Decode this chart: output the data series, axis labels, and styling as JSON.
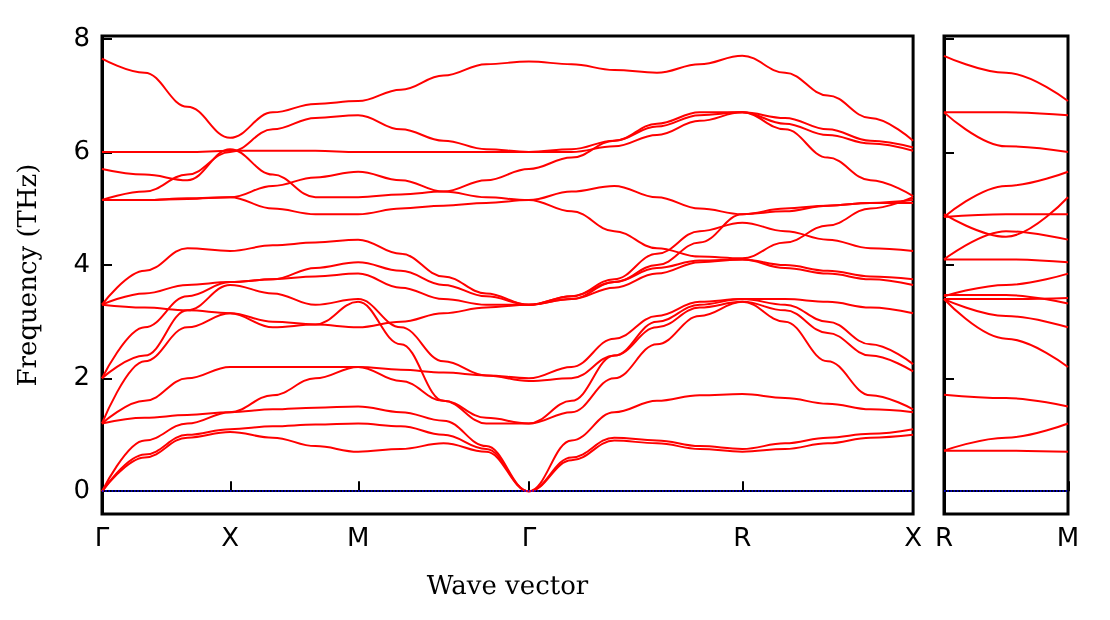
{
  "chart_data": [
    {
      "type": "line",
      "xlabel": "Wave vector",
      "ylabel": "Frequency (THz)",
      "marker": "none",
      "line_style": "solid",
      "ylim": [
        -0.4,
        8.05
      ],
      "categories": [
        "Γ",
        null,
        null,
        "X",
        null,
        null,
        "M",
        null,
        null,
        null,
        "Γ",
        null,
        null,
        null,
        null,
        "R",
        null,
        null,
        null,
        "X"
      ],
      "yticks": [
        0,
        2,
        4,
        6,
        8
      ],
      "ref_lines": [
        {
          "axis": "y",
          "value": 0,
          "color": "#0000ff",
          "line_style": "dotted"
        }
      ],
      "series": [
        {
          "color": "#ff0000",
          "values": [
            0,
            0.6,
            0.95,
            1.05,
            0.95,
            0.8,
            0.7,
            0.75,
            0.85,
            0.7,
            0,
            0.55,
            0.9,
            0.85,
            0.75,
            0.7,
            0.75,
            0.85,
            0.95,
            1.0
          ]
        },
        {
          "color": "#ff0000",
          "values": [
            0,
            0.65,
            1.0,
            1.1,
            1.15,
            1.18,
            1.2,
            1.15,
            1.0,
            0.75,
            0,
            0.6,
            0.95,
            0.9,
            0.8,
            0.75,
            0.85,
            0.95,
            1.02,
            1.1
          ]
        },
        {
          "color": "#ff0000",
          "values": [
            0,
            0.9,
            1.2,
            1.4,
            1.45,
            1.48,
            1.5,
            1.4,
            1.25,
            0.8,
            0,
            0.9,
            1.4,
            1.6,
            1.7,
            1.72,
            1.65,
            1.55,
            1.45,
            1.4
          ]
        },
        {
          "color": "#ff0000",
          "values": [
            1.2,
            1.3,
            1.35,
            1.4,
            1.7,
            2.0,
            2.2,
            1.95,
            1.6,
            1.3,
            1.2,
            1.4,
            2.0,
            2.6,
            3.1,
            3.35,
            3.0,
            2.3,
            1.7,
            1.45
          ]
        },
        {
          "color": "#ff0000",
          "values": [
            1.2,
            1.6,
            2.0,
            2.2,
            2.2,
            2.2,
            2.2,
            2.15,
            2.1,
            2.05,
            1.95,
            2.0,
            2.4,
            2.9,
            3.25,
            3.35,
            3.2,
            2.8,
            2.4,
            2.12
          ]
        },
        {
          "color": "#ff0000",
          "values": [
            1.2,
            2.3,
            2.9,
            3.15,
            2.9,
            2.95,
            3.35,
            2.6,
            1.6,
            1.2,
            1.2,
            1.6,
            2.4,
            3.0,
            3.3,
            3.4,
            3.3,
            3.0,
            2.6,
            2.25
          ]
        },
        {
          "color": "#ff0000",
          "values": [
            2.0,
            2.4,
            3.2,
            3.65,
            3.5,
            3.3,
            3.4,
            2.9,
            2.3,
            2.05,
            2.0,
            2.2,
            2.7,
            3.1,
            3.35,
            3.4,
            3.4,
            3.35,
            3.25,
            3.15
          ]
        },
        {
          "color": "#ff0000",
          "values": [
            2.0,
            2.9,
            3.45,
            3.7,
            3.75,
            3.8,
            3.85,
            3.6,
            3.4,
            3.3,
            3.3,
            3.4,
            3.6,
            3.85,
            4.05,
            4.1,
            3.95,
            3.85,
            3.75,
            3.65
          ]
        },
        {
          "color": "#ff0000",
          "values": [
            3.3,
            3.25,
            3.2,
            3.15,
            3.0,
            2.95,
            2.9,
            3.0,
            3.15,
            3.25,
            3.3,
            3.45,
            3.7,
            3.95,
            4.08,
            4.1,
            4.0,
            3.9,
            3.8,
            3.75
          ]
        },
        {
          "color": "#ff0000",
          "values": [
            3.3,
            3.9,
            4.3,
            4.25,
            4.35,
            4.4,
            4.45,
            4.2,
            3.8,
            3.5,
            3.3,
            3.45,
            3.75,
            4.2,
            4.6,
            4.75,
            4.6,
            4.45,
            4.3,
            4.25
          ]
        },
        {
          "color": "#ff0000",
          "values": [
            3.3,
            3.5,
            3.65,
            3.7,
            3.75,
            3.95,
            4.05,
            3.9,
            3.65,
            3.45,
            3.3,
            3.4,
            3.7,
            4.0,
            4.4,
            4.9,
            5.0,
            5.05,
            5.1,
            5.15
          ]
        },
        {
          "color": "#ff0000",
          "values": [
            5.15,
            5.15,
            5.17,
            5.2,
            5.0,
            4.9,
            4.9,
            5.0,
            5.05,
            5.1,
            5.15,
            4.95,
            4.6,
            4.3,
            4.15,
            4.12,
            4.4,
            4.7,
            5.0,
            5.2
          ]
        },
        {
          "color": "#ff0000",
          "values": [
            5.15,
            5.15,
            5.18,
            5.2,
            5.4,
            5.55,
            5.65,
            5.5,
            5.3,
            5.2,
            5.15,
            5.3,
            5.4,
            5.2,
            5.0,
            4.9,
            4.95,
            5.05,
            5.1,
            5.1
          ]
        },
        {
          "color": "#ff0000",
          "values": [
            5.7,
            5.6,
            5.5,
            6.05,
            5.6,
            5.2,
            5.2,
            5.25,
            5.3,
            5.5,
            5.7,
            5.9,
            6.2,
            6.5,
            6.7,
            6.7,
            6.6,
            6.4,
            6.2,
            6.08
          ]
        },
        {
          "color": "#ff0000",
          "values": [
            5.15,
            5.3,
            5.6,
            6.0,
            6.4,
            6.6,
            6.65,
            6.4,
            6.2,
            6.05,
            6.0,
            6.05,
            6.2,
            6.45,
            6.65,
            6.7,
            6.5,
            6.3,
            6.15,
            6.02
          ]
        },
        {
          "color": "#ff0000",
          "values": [
            6.0,
            6.0,
            6.0,
            6.02,
            6.02,
            6.02,
            6.0,
            6.0,
            6.0,
            6.0,
            6.0,
            6.0,
            6.1,
            6.3,
            6.55,
            6.7,
            6.4,
            5.9,
            5.5,
            5.22
          ]
        },
        {
          "color": "#ff0000",
          "values": [
            7.65,
            7.4,
            6.8,
            6.25,
            6.7,
            6.85,
            6.9,
            7.1,
            7.35,
            7.55,
            7.6,
            7.55,
            7.45,
            7.4,
            7.55,
            7.7,
            7.4,
            7.0,
            6.6,
            6.2
          ]
        }
      ]
    },
    {
      "type": "line",
      "marker": "none",
      "line_style": "solid",
      "tick_labels": "x",
      "ylim": [
        -0.4,
        8.05
      ],
      "categories": [
        "R",
        null,
        "M"
      ],
      "yticks": [
        0,
        2,
        4,
        6,
        8
      ],
      "ref_lines": [
        {
          "axis": "y",
          "value": 0,
          "color": "#0000ff",
          "line_style": "dotted"
        }
      ],
      "series": [
        {
          "color": "#ff0000",
          "values": [
            0.72,
            0.72,
            0.7
          ]
        },
        {
          "color": "#ff0000",
          "values": [
            0.72,
            0.95,
            1.2
          ]
        },
        {
          "color": "#ff0000",
          "values": [
            1.71,
            1.65,
            1.5
          ]
        },
        {
          "color": "#ff0000",
          "values": [
            3.4,
            2.7,
            2.2
          ]
        },
        {
          "color": "#ff0000",
          "values": [
            3.4,
            3.1,
            2.9
          ]
        },
        {
          "color": "#ff0000",
          "values": [
            3.4,
            3.4,
            3.42
          ]
        },
        {
          "color": "#ff0000",
          "values": [
            3.47,
            3.47,
            3.32
          ]
        },
        {
          "color": "#ff0000",
          "values": [
            3.45,
            3.65,
            3.85
          ]
        },
        {
          "color": "#ff0000",
          "values": [
            4.1,
            4.1,
            4.05
          ]
        },
        {
          "color": "#ff0000",
          "values": [
            4.1,
            4.6,
            4.45
          ]
        },
        {
          "color": "#ff0000",
          "values": [
            4.85,
            4.9,
            4.9
          ]
        },
        {
          "color": "#ff0000",
          "values": [
            4.85,
            5.4,
            5.65
          ]
        },
        {
          "color": "#ff0000",
          "values": [
            4.9,
            4.5,
            5.2
          ]
        },
        {
          "color": "#ff0000",
          "values": [
            6.7,
            6.7,
            6.65
          ]
        },
        {
          "color": "#ff0000",
          "values": [
            6.7,
            6.1,
            6.0
          ]
        },
        {
          "color": "#ff0000",
          "values": [
            7.7,
            7.4,
            6.9
          ]
        }
      ]
    }
  ]
}
